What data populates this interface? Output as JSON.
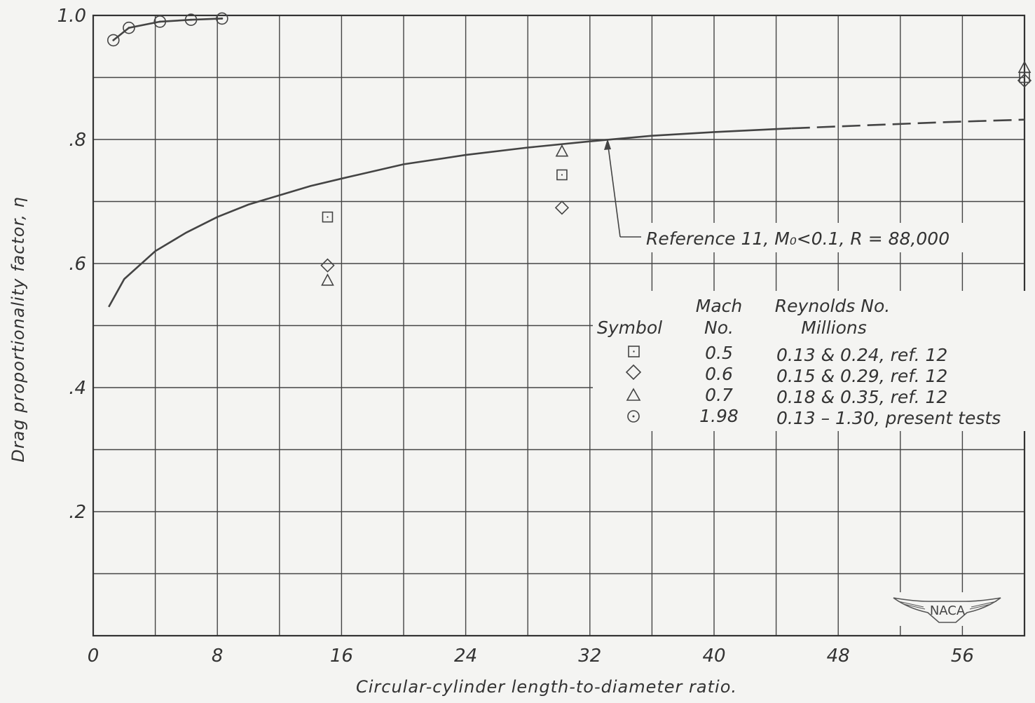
{
  "chart_data": {
    "type": "scatter",
    "xlabel": "Circular-cylinder length-to-diameter ratio.",
    "ylabel": "Drag proportionality factor, η",
    "xlim": [
      0,
      60
    ],
    "ylim": [
      0,
      1.0
    ],
    "x_ticks": [
      {
        "value": 0,
        "label": "0"
      },
      {
        "value": 8,
        "label": "8"
      },
      {
        "value": 16,
        "label": "16"
      },
      {
        "value": 24,
        "label": "24"
      },
      {
        "value": 32,
        "label": "32"
      },
      {
        "value": 40,
        "label": "40"
      },
      {
        "value": 48,
        "label": "48"
      },
      {
        "value": 56,
        "label": "56"
      }
    ],
    "y_ticks": [
      {
        "value": 0.2,
        "label": ".2"
      },
      {
        "value": 0.4,
        "label": ".4"
      },
      {
        "value": 0.6,
        "label": ".6"
      },
      {
        "value": 0.8,
        "label": ".8"
      },
      {
        "value": 1.0,
        "label": "1.0"
      }
    ],
    "grid": true,
    "reference_curve": {
      "label": "Reference 11, M₀<0.1, R = 88,000",
      "solid_points": [
        [
          1,
          0.53
        ],
        [
          2,
          0.575
        ],
        [
          4,
          0.62
        ],
        [
          6,
          0.65
        ],
        [
          8,
          0.675
        ],
        [
          10,
          0.695
        ],
        [
          12,
          0.71
        ],
        [
          14,
          0.725
        ],
        [
          16,
          0.737
        ],
        [
          20,
          0.76
        ],
        [
          24,
          0.775
        ],
        [
          28,
          0.787
        ],
        [
          32,
          0.797
        ],
        [
          36,
          0.806
        ],
        [
          40,
          0.812
        ],
        [
          45,
          0.818
        ]
      ],
      "dashed_points": [
        [
          45,
          0.818
        ],
        [
          50,
          0.823
        ],
        [
          55,
          0.828
        ],
        [
          60,
          0.832
        ]
      ]
    },
    "series": [
      {
        "symbol": "square",
        "mach": "0.5",
        "reynolds": "0.13 & 0.24, ref. 12",
        "points": [
          [
            15.1,
            0.675
          ],
          [
            30.2,
            0.743
          ],
          [
            60,
            0.9
          ]
        ]
      },
      {
        "symbol": "diamond",
        "mach": "0.6",
        "reynolds": "0.15 & 0.29, ref. 12",
        "points": [
          [
            15.1,
            0.597
          ],
          [
            30.2,
            0.69
          ],
          [
            60,
            0.895
          ]
        ]
      },
      {
        "symbol": "triangle",
        "mach": "0.7",
        "reynolds": "0.18 & 0.35, ref. 12",
        "points": [
          [
            15.1,
            0.572
          ],
          [
            30.2,
            0.78
          ],
          [
            60,
            0.915
          ]
        ]
      },
      {
        "symbol": "circle-dot",
        "mach": "1.98",
        "reynolds": "0.13 – 1.30, present tests",
        "points": [
          [
            1.3,
            0.96
          ],
          [
            2.3,
            0.98
          ],
          [
            4.3,
            0.99
          ],
          [
            6.3,
            0.993
          ],
          [
            8.3,
            0.995
          ]
        ],
        "connected": true
      }
    ],
    "legend": {
      "headers": {
        "symbol": "Symbol",
        "mach_line1": "Mach",
        "mach_line2": "No.",
        "reynolds_line1": "Reynolds No.",
        "reynolds_line2": "Millions"
      }
    },
    "logo_text": "NACA"
  }
}
